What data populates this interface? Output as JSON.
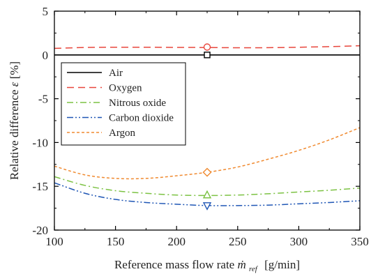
{
  "chart_data": {
    "type": "line",
    "xlabel": "Reference mass flow rate",
    "xlabel_symbol": "ṁ",
    "xlabel_subscript": "ref",
    "xlabel_unit": "[g/min]",
    "ylabel": "Relative difference",
    "ylabel_symbol": "ε",
    "ylabel_unit": "[%]",
    "xlim": [
      100,
      350
    ],
    "ylim": [
      -20,
      5
    ],
    "xticks": [
      "100",
      "150",
      "200",
      "250",
      "300",
      "350"
    ],
    "yticks": [
      "5",
      "0",
      "-5",
      "-10",
      "-15",
      "-20"
    ],
    "legend_position": "upper-left",
    "grid": false,
    "series": [
      {
        "name": "Air",
        "color": "#000000",
        "dash": "solid",
        "marker": "square",
        "x": [
          100,
          150,
          200,
          250,
          300,
          350
        ],
        "y": [
          0,
          0,
          0,
          0,
          0,
          0
        ],
        "marker_point": [
          225,
          0
        ]
      },
      {
        "name": "Oxygen",
        "color": "#e8463c",
        "dash": "dashed",
        "marker": "circle",
        "x": [
          100,
          125,
          150,
          175,
          200,
          225,
          250,
          275,
          300,
          325,
          350
        ],
        "y": [
          0.75,
          0.85,
          0.88,
          0.88,
          0.86,
          0.85,
          0.82,
          0.83,
          0.88,
          0.95,
          1.05
        ],
        "marker_point": [
          225,
          0.9
        ]
      },
      {
        "name": "Nitrous oxide",
        "color": "#7cc243",
        "dash": "dashdot",
        "marker": "triangle-up",
        "x": [
          100,
          125,
          150,
          175,
          200,
          225,
          250,
          275,
          300,
          325,
          350
        ],
        "y": [
          -13.9,
          -14.9,
          -15.5,
          -15.8,
          -16.0,
          -16.05,
          -16.0,
          -15.85,
          -15.65,
          -15.45,
          -15.2
        ],
        "marker_point": [
          225,
          -16.0
        ]
      },
      {
        "name": "Carbon dioxide",
        "color": "#1f56b5",
        "dash": "dashdotdot",
        "marker": "triangle-down",
        "x": [
          100,
          125,
          150,
          175,
          200,
          225,
          250,
          275,
          300,
          325,
          350
        ],
        "y": [
          -14.6,
          -15.8,
          -16.5,
          -16.85,
          -17.05,
          -17.2,
          -17.2,
          -17.15,
          -17.0,
          -16.85,
          -16.65
        ],
        "marker_point": [
          225,
          -17.2
        ]
      },
      {
        "name": "Argon",
        "color": "#f08a30",
        "dash": "dotted",
        "marker": "diamond",
        "x": [
          100,
          125,
          150,
          175,
          200,
          225,
          250,
          275,
          300,
          325,
          350
        ],
        "y": [
          -12.7,
          -13.7,
          -14.1,
          -14.1,
          -13.8,
          -13.4,
          -12.8,
          -11.9,
          -10.9,
          -9.7,
          -8.3
        ],
        "marker_point": [
          225,
          -13.4
        ]
      }
    ]
  }
}
